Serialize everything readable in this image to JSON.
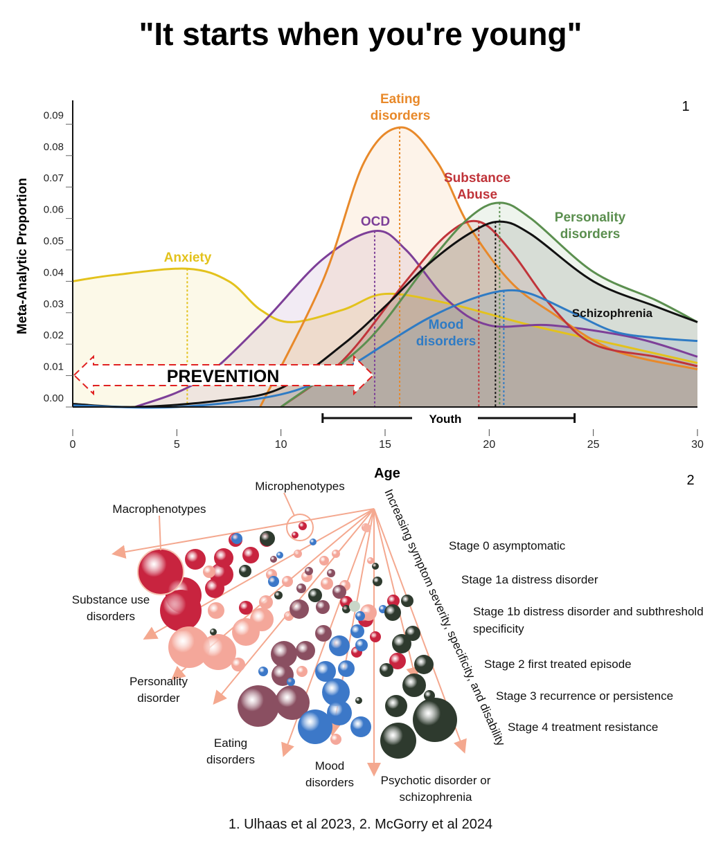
{
  "title": "\"It starts when you're young\"",
  "caption": "1. Ulhaas et al 2023, 2. McGorry et al 2024",
  "panel_labels": [
    "1",
    "2"
  ],
  "chart_data": {
    "type": "line",
    "ylabel": "Meta-Analytic Proportion",
    "xlabel": "Age",
    "xlim": [
      0,
      30
    ],
    "ylim": [
      0,
      0.095
    ],
    "xticks": [
      "0",
      "5",
      "10",
      "15",
      "20",
      "25",
      "30"
    ],
    "yticks": [
      "0.00",
      "0.01",
      "0.02",
      "0.03",
      "0.04",
      "0.05",
      "0.06",
      "0.07",
      "0.08",
      "0.09"
    ],
    "grid": false,
    "annotations": {
      "prevention": "PREVENTION",
      "youth": "Youth",
      "youth_range": [
        12,
        24.1
      ],
      "prevention_range": [
        0,
        14.5
      ]
    },
    "series": [
      {
        "name": "Anxiety",
        "color": "#e3c21c",
        "peak_age": 5.5,
        "points": [
          [
            0,
            0.04
          ],
          [
            2,
            0.042
          ],
          [
            5.5,
            0.044
          ],
          [
            7.5,
            0.04
          ],
          [
            9,
            0.031
          ],
          [
            10.5,
            0.027
          ],
          [
            13,
            0.031
          ],
          [
            15,
            0.036
          ],
          [
            18,
            0.033
          ],
          [
            22,
            0.026
          ],
          [
            26,
            0.02
          ],
          [
            30,
            0.014
          ]
        ]
      },
      {
        "name": "OCD",
        "color": "#7d3f98",
        "peak_age": 14.5,
        "points": [
          [
            3,
            0
          ],
          [
            6,
            0.008
          ],
          [
            9,
            0.026
          ],
          [
            12,
            0.047
          ],
          [
            14.5,
            0.056
          ],
          [
            16,
            0.05
          ],
          [
            18,
            0.034
          ],
          [
            20,
            0.026
          ],
          [
            23,
            0.026
          ],
          [
            27,
            0.022
          ],
          [
            30,
            0.016
          ]
        ]
      },
      {
        "name": "Eating disorders",
        "color": "#e8892a",
        "peak_age": 15.7,
        "points": [
          [
            9,
            0
          ],
          [
            12,
            0.04
          ],
          [
            14,
            0.078
          ],
          [
            15.8,
            0.089
          ],
          [
            17.5,
            0.078
          ],
          [
            19,
            0.058
          ],
          [
            21,
            0.04
          ],
          [
            23,
            0.03
          ],
          [
            26,
            0.018
          ],
          [
            30,
            0.012
          ]
        ]
      },
      {
        "name": "Substance Abuse",
        "color": "#c0343a",
        "peak_age": 19.5,
        "points": [
          [
            10,
            0
          ],
          [
            13,
            0.015
          ],
          [
            16,
            0.04
          ],
          [
            18,
            0.055
          ],
          [
            19.5,
            0.059
          ],
          [
            21,
            0.05
          ],
          [
            23,
            0.032
          ],
          [
            25,
            0.02
          ],
          [
            28,
            0.016
          ],
          [
            30,
            0.013
          ]
        ]
      },
      {
        "name": "Personality disorders",
        "color": "#5b8f4f",
        "peak_age": 20.5,
        "points": [
          [
            10,
            0
          ],
          [
            14,
            0.02
          ],
          [
            17,
            0.045
          ],
          [
            19,
            0.06
          ],
          [
            20.5,
            0.065
          ],
          [
            22,
            0.06
          ],
          [
            25,
            0.043
          ],
          [
            28,
            0.034
          ],
          [
            30,
            0.027
          ]
        ]
      },
      {
        "name": "Schizophrenia",
        "color": "#111111",
        "peak_age": 20.3,
        "points": [
          [
            0,
            0.001
          ],
          [
            3,
            0
          ],
          [
            7,
            0.002
          ],
          [
            10,
            0.006
          ],
          [
            13,
            0.02
          ],
          [
            15,
            0.032
          ],
          [
            17,
            0.045
          ],
          [
            19,
            0.055
          ],
          [
            20.5,
            0.059
          ],
          [
            22,
            0.055
          ],
          [
            25,
            0.04
          ],
          [
            28,
            0.032
          ],
          [
            30,
            0.027
          ]
        ]
      },
      {
        "name": "Mood disorders",
        "color": "#2f7bc4",
        "peak_age": 20.7,
        "points": [
          [
            0,
            0.0005
          ],
          [
            5,
            0
          ],
          [
            10,
            0.004
          ],
          [
            13,
            0.012
          ],
          [
            15,
            0.02
          ],
          [
            17,
            0.028
          ],
          [
            19,
            0.034
          ],
          [
            20.7,
            0.037
          ],
          [
            22,
            0.036
          ],
          [
            24,
            0.03
          ],
          [
            26,
            0.024
          ],
          [
            28,
            0.022
          ],
          [
            30,
            0.021
          ]
        ]
      }
    ]
  },
  "diagram": {
    "labels": {
      "micro": "Microphenotypes",
      "macro": "Macrophenotypes",
      "axis": "Increasing symptom severity, specificity, and disability",
      "substance": [
        "Substance use",
        "disorders"
      ],
      "personality": [
        "Personality",
        "disorder"
      ],
      "eating": [
        "Eating",
        "disorders"
      ],
      "mood": [
        "Mood",
        "disorders"
      ],
      "psychotic": [
        "Psychotic disorder or",
        "schizophrenia"
      ]
    },
    "stages": [
      "Stage 0 asymptomatic",
      "Stage 1a distress disorder",
      "Stage 1b distress disorder and subthreshold",
      "specificity",
      "Stage 2 first treated episode",
      "Stage 3 recurrence or persistence",
      "Stage 4 treatment resistance"
    ],
    "colors": {
      "substance": "#c8243f",
      "personality": "#f4a79a",
      "eating": "#8a4f61",
      "mood": "#3c78c8",
      "psychotic": "#2e3a2e",
      "arrow": "#f4a88f"
    }
  }
}
